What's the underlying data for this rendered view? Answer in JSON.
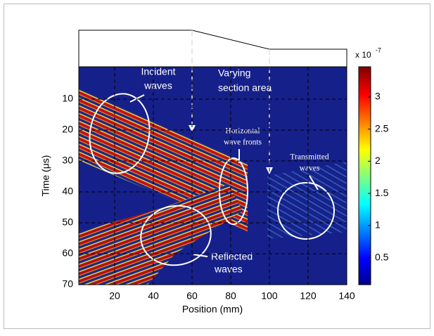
{
  "chart_data": {
    "type": "heatmap",
    "xlabel": "Position (mm)",
    "ylabel": "Time (μs)",
    "xlim": [
      0,
      140
    ],
    "xticks": [
      20,
      40,
      60,
      80,
      100,
      120,
      140
    ],
    "ylim": [
      0,
      70
    ],
    "yticks": [
      10,
      20,
      30,
      40,
      50,
      60,
      70
    ],
    "grid": true,
    "colormap": "jet",
    "colorbar": {
      "label": "x 10",
      "exponent": "-7",
      "lim": [
        0.08,
        3.47
      ],
      "ticks": [
        0.5,
        1,
        1.5,
        2,
        2.5,
        3
      ]
    },
    "annotations": [
      {
        "lines": [
          "Incident",
          "waves"
        ]
      },
      {
        "lines": [
          "Varying",
          "section area"
        ]
      },
      {
        "lines": [
          "Horizontal",
          "wave fronts"
        ]
      },
      {
        "lines": [
          "Transmitted",
          "waves"
        ]
      },
      {
        "lines": [
          "Reflected",
          "waves"
        ]
      }
    ]
  }
}
